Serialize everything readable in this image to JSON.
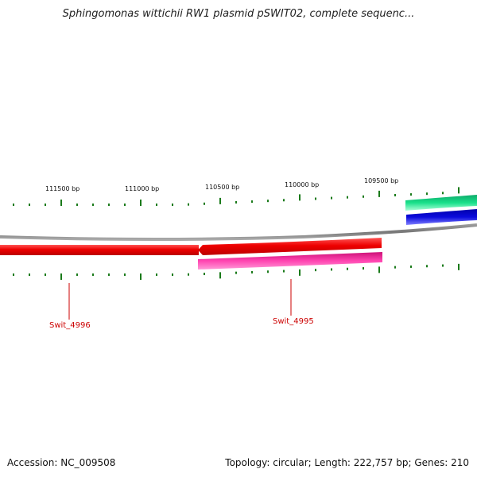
{
  "header": {
    "title": "Sphingomonas wittichii RW1 plasmid pSWIT02, complete sequenc..."
  },
  "ruler": {
    "labels": [
      "111500 bp",
      "111000 bp",
      "110500 bp",
      "110000 bp",
      "109500 bp"
    ],
    "tick_color": "#1a7a1a"
  },
  "genes": [
    {
      "name": "Swit_4996",
      "color": "#ee0000",
      "strand": "forward"
    },
    {
      "name": "Swit_4995",
      "color": "#ee0000",
      "strand": "forward"
    }
  ],
  "tracks": {
    "backbone_color": "#808080",
    "pink_feature_color": "#e0208a",
    "green_feature_color": "#19e08a",
    "blue_feature_color": "#0a0adc",
    "label_color": "#cc0000"
  },
  "footer": {
    "accession": "Accession: NC_009508",
    "summary": "Topology: circular; Length: 222,757 bp; Genes: 210"
  }
}
